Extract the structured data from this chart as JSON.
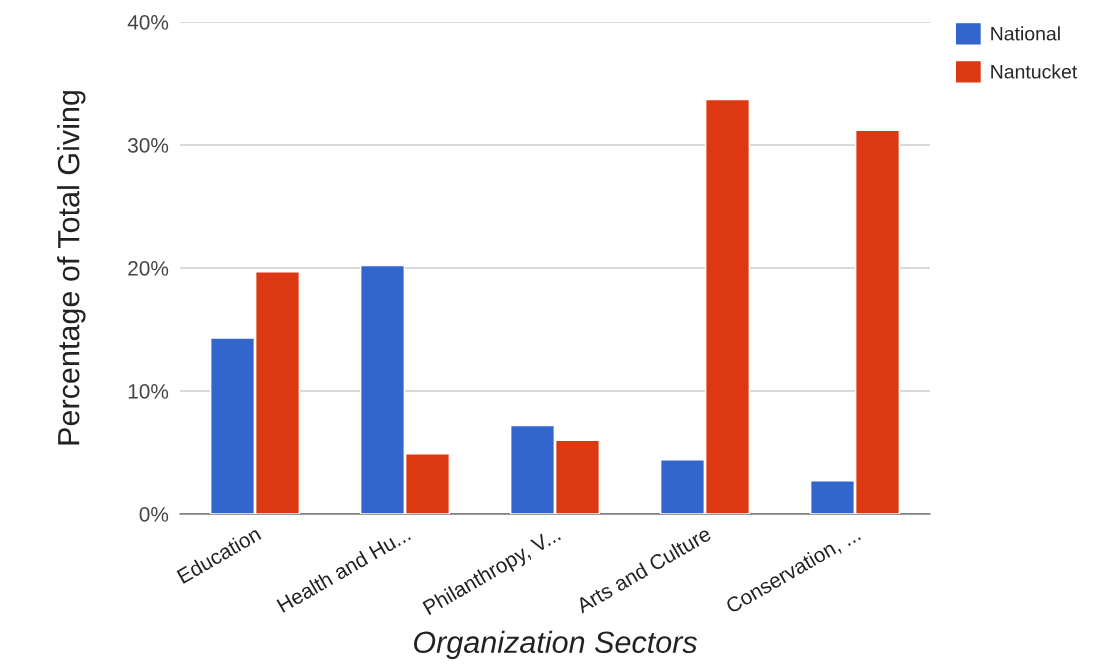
{
  "chart_data": {
    "type": "bar",
    "categories": [
      "Education",
      "Health and Hu...",
      "Philanthropy, V...",
      "Arts and Culture",
      "Conservation, ..."
    ],
    "series": [
      {
        "name": "National",
        "color": "#3366cc",
        "values": [
          14.3,
          20.2,
          7.2,
          4.4,
          2.7
        ]
      },
      {
        "name": "Nantucket",
        "color": "#dc3912",
        "values": [
          19.7,
          4.9,
          6.0,
          33.7,
          31.2
        ]
      }
    ],
    "xlabel": "Organization Sectors",
    "ylabel": "Percentage of Total Giving",
    "ylim": [
      0,
      40
    ],
    "yticks": [
      {
        "value": 0,
        "label": "0%"
      },
      {
        "value": 10,
        "label": "10%"
      },
      {
        "value": 20,
        "label": "20%"
      },
      {
        "value": 30,
        "label": "30%"
      },
      {
        "value": 40,
        "label": "40%"
      }
    ],
    "grid": "y",
    "legend": "top right"
  }
}
